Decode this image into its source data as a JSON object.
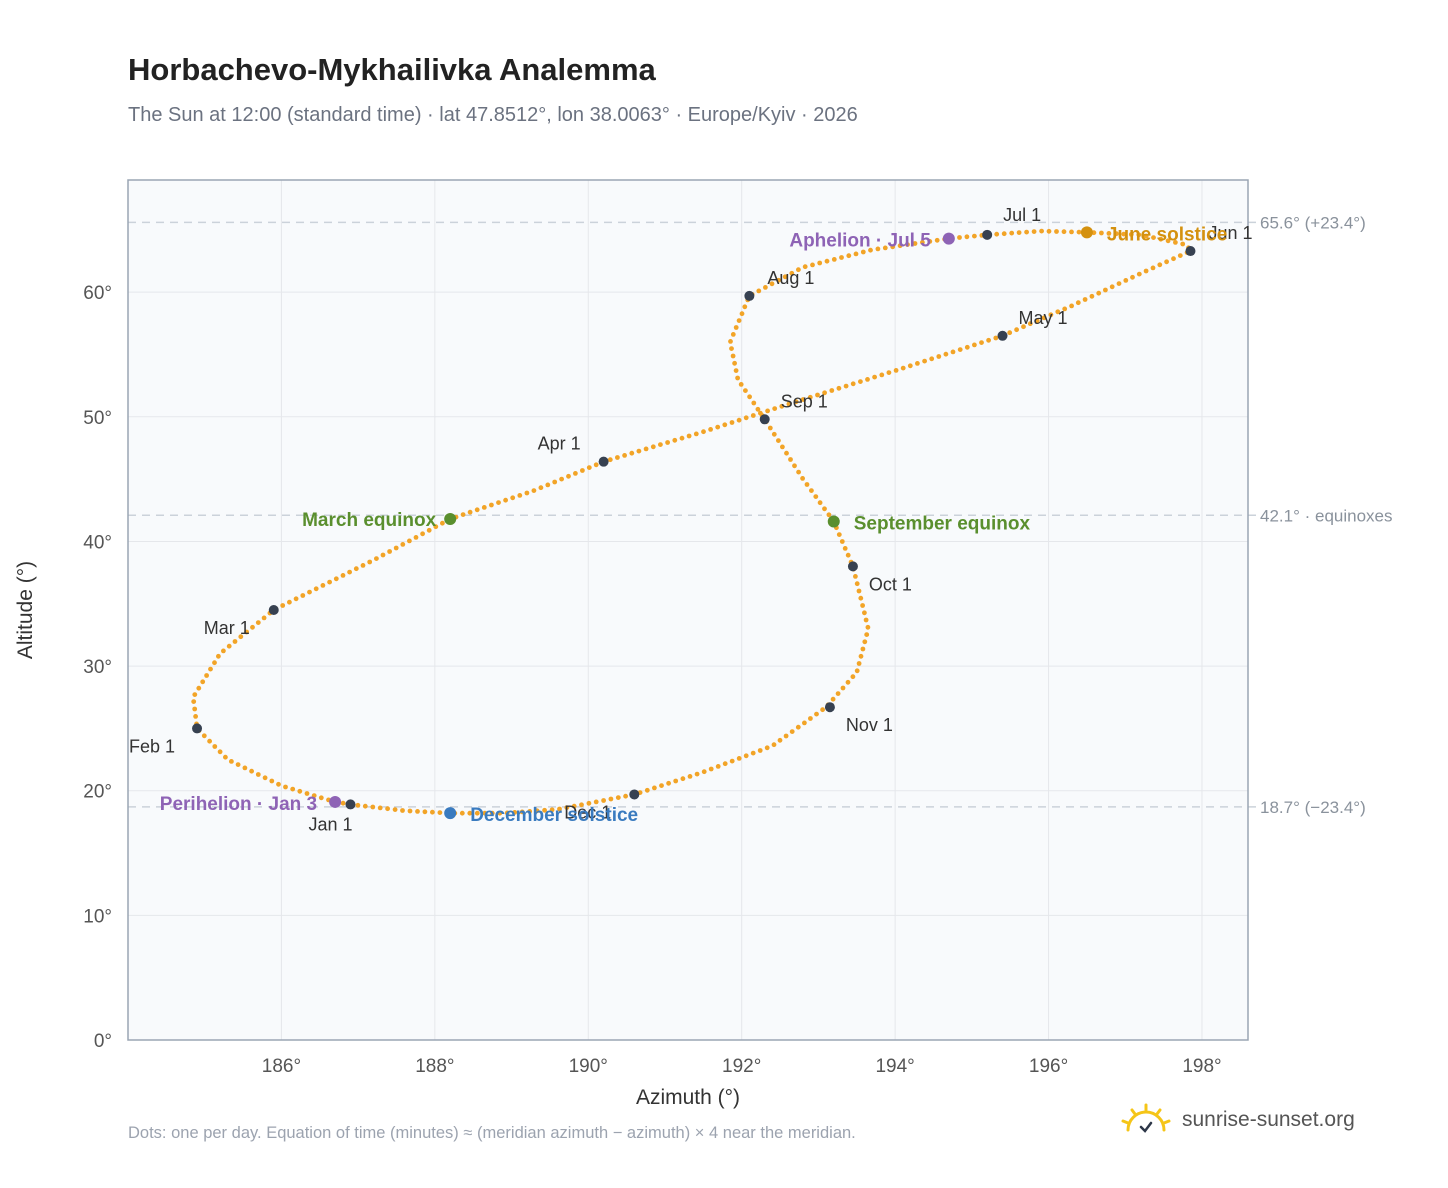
{
  "header": {
    "title": "Horbachevo-Mykhailivka Analemma",
    "subtitle": "The Sun at 12:00 (standard time) · lat 47.8512°, lon 38.0063° · Europe/Kyiv · 2026"
  },
  "footer": {
    "note": "Dots: one per day. Equation of time (minutes) ≈ (meridian azimuth − azimuth) × 4 near the meridian.",
    "brand": "sunrise-sunset.org",
    "brand_icon": "sun-logo-icon"
  },
  "colors": {
    "curve": "#f2a427",
    "month_dot": "#374151",
    "equinox": "#5a8f2e",
    "june_solstice": "#d4910f",
    "december_solstice": "#3a7bbf",
    "apsis": "#8e63b5",
    "grid": "#e5e7eb",
    "ref_line": "#cbd2da",
    "plot_bg": "#f8fafc",
    "frame": "#9aa5b4"
  },
  "chart_data": {
    "type": "scatter",
    "xlabel": "Azimuth (°)",
    "ylabel": "Altitude (°)",
    "xlim": [
      184.0,
      198.6
    ],
    "ylim": [
      0,
      69
    ],
    "xticks": [
      186,
      188,
      190,
      192,
      194,
      196,
      198
    ],
    "yticks": [
      0,
      10,
      20,
      30,
      40,
      50,
      60
    ],
    "tick_suffix": "°",
    "grid": true,
    "reference_lines": [
      {
        "y": 65.6,
        "label": "65.6° (+23.4°)"
      },
      {
        "y": 42.1,
        "label": "42.1° · equinoxes"
      },
      {
        "y": 18.7,
        "label": "18.7° (−23.4°)"
      }
    ],
    "series_path": [
      [
        186.9,
        18.9
      ],
      [
        187.6,
        18.4
      ],
      [
        188.2,
        18.2
      ],
      [
        188.9,
        18.2
      ],
      [
        189.6,
        18.5
      ],
      [
        190.6,
        19.7
      ],
      [
        191.5,
        21.5
      ],
      [
        192.4,
        23.6
      ],
      [
        193.1,
        26.7
      ],
      [
        193.5,
        29.5
      ],
      [
        193.65,
        33.0
      ],
      [
        193.45,
        38.0
      ],
      [
        193.2,
        41.6
      ],
      [
        192.8,
        45.0
      ],
      [
        192.3,
        49.8
      ],
      [
        191.95,
        53.0
      ],
      [
        191.85,
        56.0
      ],
      [
        192.1,
        59.7
      ],
      [
        192.8,
        62.0
      ],
      [
        193.7,
        63.4
      ],
      [
        194.7,
        64.3
      ],
      [
        195.2,
        64.6
      ],
      [
        195.9,
        64.9
      ],
      [
        196.5,
        64.8
      ],
      [
        197.2,
        64.6
      ],
      [
        197.8,
        63.8
      ],
      [
        197.85,
        63.3
      ],
      [
        197.2,
        61.5
      ],
      [
        196.3,
        58.9
      ],
      [
        195.4,
        56.5
      ],
      [
        194.0,
        53.7
      ],
      [
        192.6,
        51.0
      ],
      [
        191.5,
        48.8
      ],
      [
        190.2,
        46.4
      ],
      [
        189.3,
        44.1
      ],
      [
        188.2,
        41.8
      ],
      [
        187.2,
        38.5
      ],
      [
        185.9,
        34.5
      ],
      [
        185.2,
        31.0
      ],
      [
        184.85,
        27.5
      ],
      [
        184.9,
        25.0
      ],
      [
        185.3,
        22.5
      ],
      [
        186.0,
        20.4
      ],
      [
        186.7,
        19.1
      ],
      [
        186.9,
        18.9
      ]
    ],
    "month_points": [
      {
        "label": "Jan 1",
        "x": 186.9,
        "y": 18.9
      },
      {
        "label": "Feb 1",
        "x": 184.9,
        "y": 25.0
      },
      {
        "label": "Mar 1",
        "x": 185.9,
        "y": 34.5
      },
      {
        "label": "Apr 1",
        "x": 190.2,
        "y": 46.4
      },
      {
        "label": "May 1",
        "x": 195.4,
        "y": 56.5
      },
      {
        "label": "Jun 1",
        "x": 197.85,
        "y": 63.3
      },
      {
        "label": "Jul 1",
        "x": 195.2,
        "y": 64.6
      },
      {
        "label": "Aug 1",
        "x": 192.1,
        "y": 59.7
      },
      {
        "label": "Sep 1",
        "x": 192.3,
        "y": 49.8
      },
      {
        "label": "Oct 1",
        "x": 193.45,
        "y": 38.0
      },
      {
        "label": "Nov 1",
        "x": 193.15,
        "y": 26.7
      },
      {
        "label": "Dec 1",
        "x": 190.6,
        "y": 19.7
      }
    ],
    "events": [
      {
        "label": "March equinox",
        "x": 188.2,
        "y": 41.8,
        "kind": "equinox"
      },
      {
        "label": "September equinox",
        "x": 193.2,
        "y": 41.6,
        "kind": "equinox"
      },
      {
        "label": "June solstice",
        "x": 196.5,
        "y": 64.8,
        "kind": "june_solstice"
      },
      {
        "label": "December solstice",
        "x": 188.2,
        "y": 18.2,
        "kind": "december_solstice"
      },
      {
        "label": "Aphelion · Jul 5",
        "x": 194.7,
        "y": 64.3,
        "kind": "apsis"
      },
      {
        "label": "Perihelion · Jan 3",
        "x": 186.7,
        "y": 19.1,
        "kind": "apsis"
      }
    ]
  }
}
